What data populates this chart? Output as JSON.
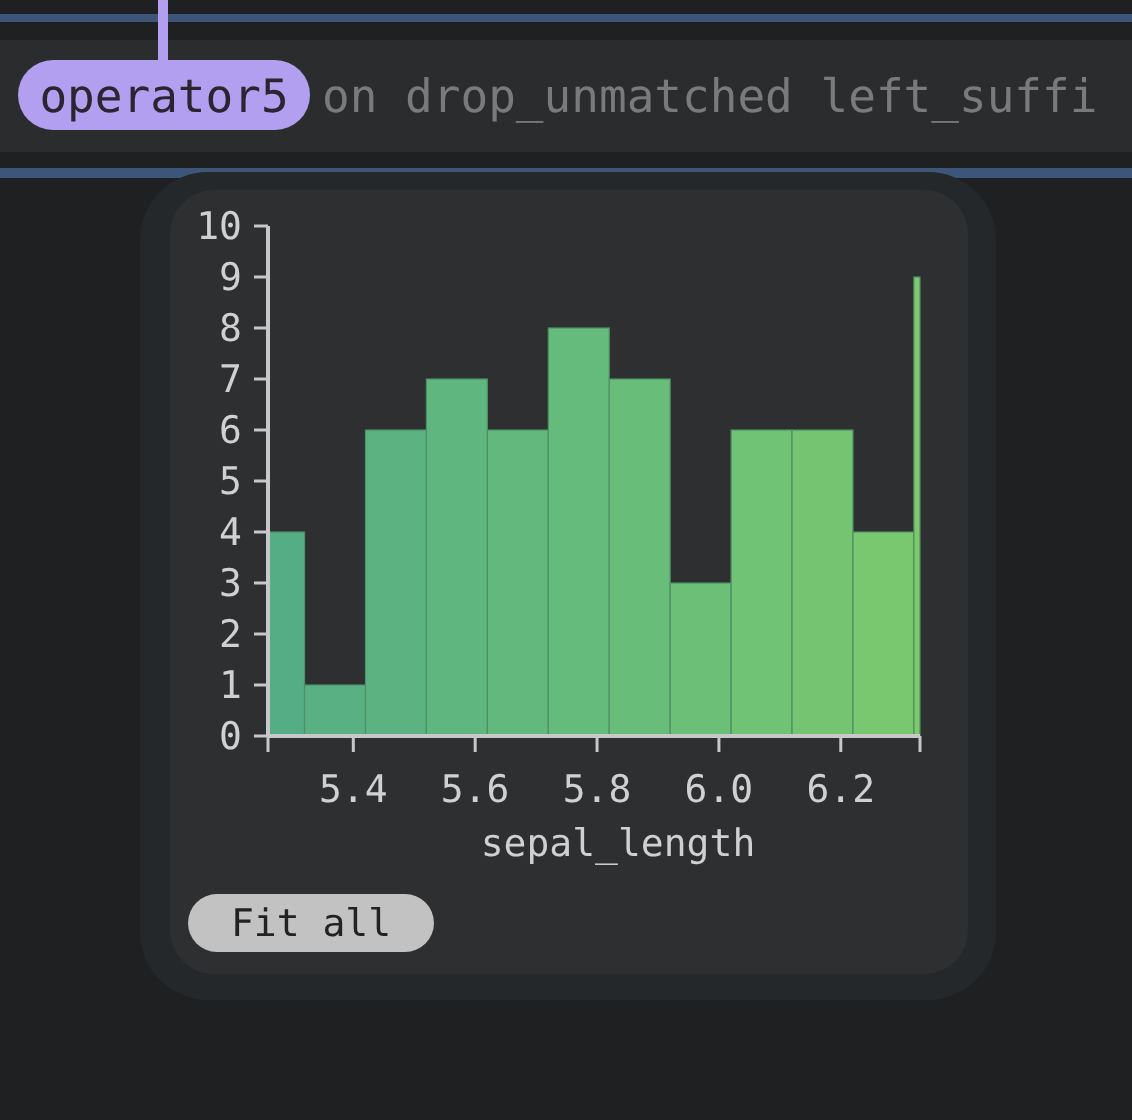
{
  "chart_data": {
    "type": "histogram",
    "xlabel": "sepal_length",
    "bins": [
      5.26,
      5.32,
      5.42,
      5.52,
      5.62,
      5.72,
      5.82,
      5.92,
      6.02,
      6.12,
      6.22,
      6.32,
      6.33
    ],
    "values": [
      4,
      1,
      6,
      7,
      6,
      8,
      7,
      3,
      6,
      6,
      4,
      9
    ],
    "colors": [
      "#55ad85",
      "#58b083",
      "#5cb381",
      "#5fb67f",
      "#62b87d",
      "#65bb7b",
      "#68bd79",
      "#6cbf77",
      "#70c274",
      "#74c472",
      "#79c76e",
      "#7ec96b"
    ],
    "xlim": [
      5.26,
      6.33
    ],
    "xticks": [
      {
        "value": 5.26,
        "label": null
      },
      5.4,
      5.6,
      5.8,
      {
        "value": 6,
        "label": "6.0"
      },
      6.2,
      {
        "value": 6.33,
        "label": null
      }
    ],
    "ylim": [
      0,
      10
    ],
    "yticks": [
      0,
      1,
      2,
      3,
      4,
      5,
      6,
      7,
      8,
      9,
      10
    ],
    "grid": false,
    "annotations": [
      "operator5",
      "on drop_unmatched left_suffi",
      "Fit all"
    ]
  }
}
